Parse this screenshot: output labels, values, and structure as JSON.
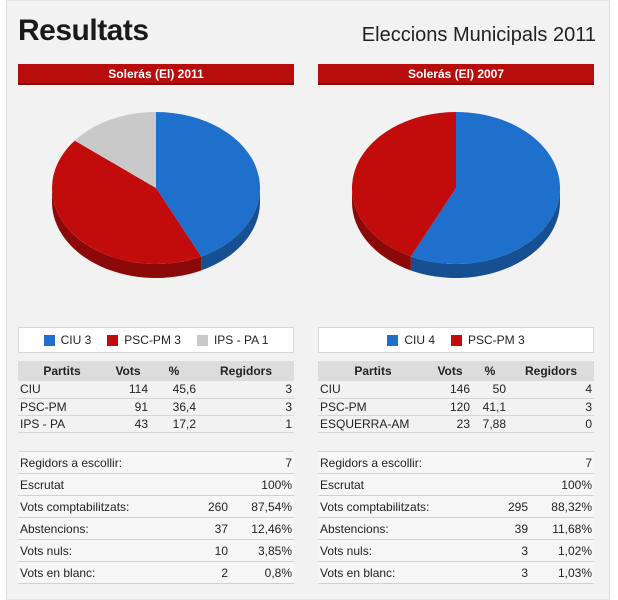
{
  "page": {
    "title": "Resultats",
    "subtitle": "Eleccions Municipals 2011"
  },
  "colors": {
    "CIU": "#1f6fcc",
    "PSC-PM": "#c20c0c",
    "IPS - PA": "#c9c9c9",
    "header_bar": "#b80d0d"
  },
  "left": {
    "header": "Solerás (El) 2011",
    "legend": [
      "CIU 3",
      "PSC-PM 3",
      "IPS - PA 1"
    ],
    "columns": [
      "Partits",
      "Vots",
      "%",
      "Regidors"
    ],
    "rows": [
      [
        "CIU",
        "114",
        "45,6",
        "3"
      ],
      [
        "PSC-PM",
        "91",
        "36,4",
        "3"
      ],
      [
        "IPS - PA",
        "43",
        "17,2",
        "1"
      ]
    ],
    "summary": [
      [
        "Regidors a escollir:",
        "",
        "7"
      ],
      [
        "Escrutat",
        "",
        "100%"
      ],
      [
        "Vots comptabilitzats:",
        "260",
        "87,54%"
      ],
      [
        "Abstencions:",
        "37",
        "12,46%"
      ],
      [
        "Vots nuls:",
        "10",
        "3,85%"
      ],
      [
        "Vots en blanc:",
        "2",
        "0,8%"
      ]
    ]
  },
  "right": {
    "header": "Solerás (El) 2007",
    "legend": [
      "CIU 4",
      "PSC-PM 3"
    ],
    "columns": [
      "Partits",
      "Vots",
      "%",
      "Regidors"
    ],
    "rows": [
      [
        "CIU",
        "146",
        "50",
        "4"
      ],
      [
        "PSC-PM",
        "120",
        "41,1",
        "3"
      ],
      [
        "ESQUERRA-AM",
        "23",
        "7,88",
        "0"
      ]
    ],
    "summary": [
      [
        "Regidors a escollir:",
        "",
        "7"
      ],
      [
        "Escrutat",
        "",
        "100%"
      ],
      [
        "Vots comptabilitzats:",
        "295",
        "88,32%"
      ],
      [
        "Abstencions:",
        "39",
        "11,68%"
      ],
      [
        "Vots nuls:",
        "3",
        "1,02%"
      ],
      [
        "Vots en blanc:",
        "3",
        "1,03%"
      ]
    ]
  },
  "chart_data": [
    {
      "type": "pie",
      "title": "Solerás (El) 2011",
      "categories": [
        "CIU",
        "PSC-PM",
        "IPS - PA"
      ],
      "values": [
        3,
        3,
        1
      ],
      "colors": [
        "#1f6fcc",
        "#c20c0c",
        "#c9c9c9"
      ]
    },
    {
      "type": "pie",
      "title": "Solerás (El) 2007",
      "categories": [
        "CIU",
        "PSC-PM"
      ],
      "values": [
        4,
        3
      ],
      "colors": [
        "#1f6fcc",
        "#c20c0c"
      ]
    }
  ]
}
